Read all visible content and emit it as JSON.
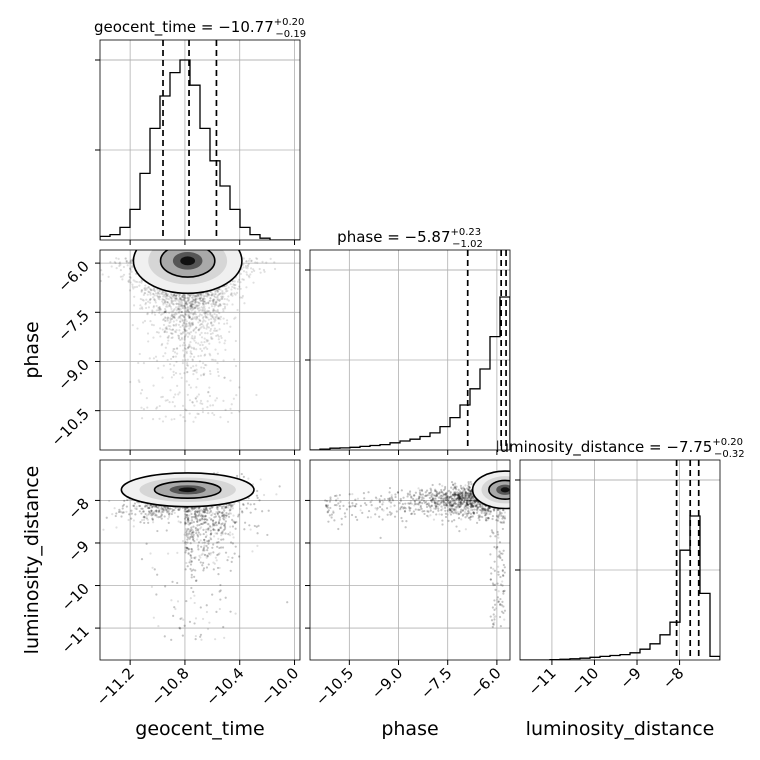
{
  "chart_data": {
    "type": "corner",
    "parameters": [
      {
        "name": "geocent_time",
        "title": {
          "prefix": "geocent_time = ",
          "median": "−10.77",
          "plus": "+0.20",
          "minus": "−0.19"
        },
        "range": [
          -11.42,
          -9.96
        ],
        "ticks": [
          -11.2,
          -10.8,
          -10.4,
          -10.0
        ],
        "tick_labels": [
          "−11.2",
          "−10.8",
          "−10.4",
          "−10.0"
        ],
        "quantiles": [
          -10.96,
          -10.77,
          -10.57
        ],
        "hist": [
          0.02,
          0.03,
          0.07,
          0.17,
          0.37,
          0.62,
          0.8,
          0.93,
          1.0,
          0.86,
          0.62,
          0.44,
          0.3,
          0.17,
          0.07,
          0.03,
          0.01,
          0.0,
          0.0,
          0.0
        ]
      },
      {
        "name": "phase",
        "title": {
          "prefix": "phase = ",
          "median": "−5.87",
          "plus": "+0.23",
          "minus": "−1.02"
        },
        "range": [
          -11.7,
          -5.6
        ],
        "ticks": [
          -10.5,
          -9.0,
          -7.5,
          -6.0
        ],
        "tick_labels": [
          "−10.5",
          "−9.0",
          "−7.5",
          "−6.0"
        ],
        "quantiles": [
          -6.89,
          -5.87,
          -5.72
        ],
        "hist": [
          0.0,
          0.005,
          0.01,
          0.012,
          0.015,
          0.02,
          0.025,
          0.03,
          0.04,
          0.05,
          0.06,
          0.075,
          0.095,
          0.13,
          0.18,
          0.25,
          0.34,
          0.45,
          0.63,
          0.85
        ]
      },
      {
        "name": "luminosity_distance",
        "title": {
          "prefix": "luminosity_distance = ",
          "median": "−7.75",
          "plus": "+0.20",
          "minus": "−0.32"
        },
        "range": [
          -11.75,
          -7.05
        ],
        "ticks": [
          -11,
          -10,
          -9,
          -8
        ],
        "tick_labels": [
          "−11",
          "−10",
          "−9",
          "−8"
        ],
        "quantiles": [
          -8.07,
          -7.75,
          -7.55
        ],
        "hist": [
          0.0,
          0.0,
          0.0,
          0.002,
          0.004,
          0.007,
          0.01,
          0.015,
          0.02,
          0.025,
          0.03,
          0.04,
          0.06,
          0.09,
          0.14,
          0.21,
          0.61,
          0.8,
          0.37,
          0.02
        ]
      }
    ],
    "samples_2d": {
      "geocent_time_vs_phase": {
        "mode": [
          -10.78,
          -5.93
        ]
      },
      "geocent_time_vs_luminosity_distance": {
        "mode": [
          -10.78,
          -7.75
        ]
      },
      "phase_vs_luminosity_distance": {
        "mode": [
          -5.75,
          -7.75
        ]
      }
    },
    "grid": true
  }
}
